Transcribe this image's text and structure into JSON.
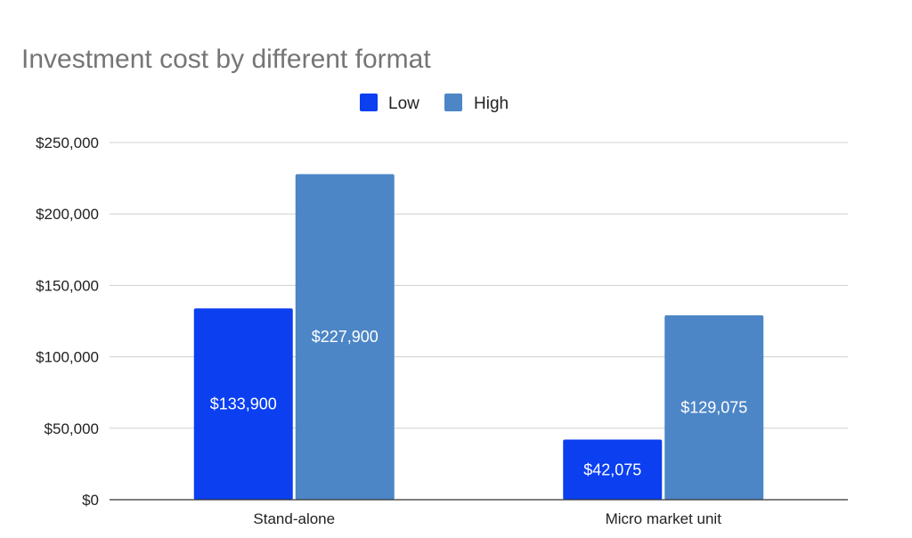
{
  "chart_data": {
    "type": "bar",
    "title": "Investment cost by different format",
    "xlabel": "",
    "ylabel": "",
    "categories": [
      "Stand-alone",
      "Micro market unit"
    ],
    "series": [
      {
        "name": "Low",
        "color": "#0b3ff0",
        "values": [
          133900,
          42075
        ],
        "labels": [
          "$133,900",
          "$42,075"
        ]
      },
      {
        "name": "High",
        "color": "#4d86c6",
        "values": [
          227900,
          129075
        ],
        "labels": [
          "$227,900",
          "$129,075"
        ]
      }
    ],
    "ylim": [
      0,
      250000
    ],
    "y_ticks": [
      0,
      50000,
      100000,
      150000,
      200000,
      250000
    ],
    "y_tick_labels": [
      "$0",
      "$50,000",
      "$100,000",
      "$150,000",
      "$200,000",
      "$250,000"
    ],
    "grid": true,
    "legend_position": "top-center"
  }
}
